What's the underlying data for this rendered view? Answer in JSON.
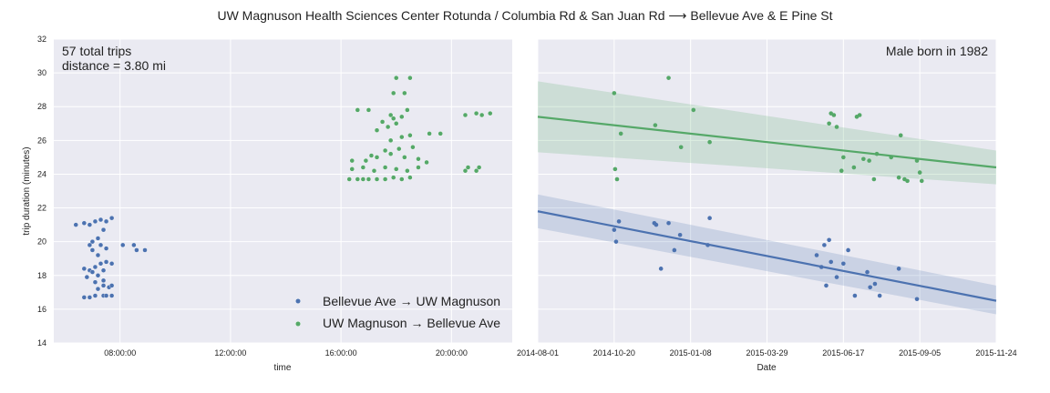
{
  "title": "UW Magnuson Health Sciences Center Rotunda / Columbia Rd & San Juan Rd ⟶ Bellevue Ave & E Pine St",
  "colors": {
    "bellevue_to_uw": "#4c72b0",
    "uw_to_bellevue": "#55a868",
    "panel_bg": "#eaeaf2",
    "grid": "#ffffff"
  },
  "chart_data": [
    {
      "type": "scatter",
      "xlabel": "time",
      "ylabel": "trip duration (minutes)",
      "ylim": [
        14,
        32
      ],
      "yticks": [
        "14",
        "16",
        "18",
        "20",
        "22",
        "24",
        "26",
        "28",
        "30",
        "32"
      ],
      "xlim_hours": [
        5.6,
        22.2
      ],
      "xticks": [
        {
          "h": 8,
          "label": "08:00:00"
        },
        {
          "h": 12,
          "label": "12:00:00"
        },
        {
          "h": 16,
          "label": "16:00:00"
        },
        {
          "h": 20,
          "label": "20:00:00"
        }
      ],
      "annotation_line1": "57 total trips",
      "annotation_line2": "distance = 3.80 mi",
      "legend": [
        {
          "name": "Bellevue Ave → UW Magnuson",
          "color": "#4c72b0"
        },
        {
          "name": "UW Magnuson → Bellevue Ave",
          "color": "#55a868"
        }
      ],
      "series": [
        {
          "name": "Bellevue Ave → UW Magnuson",
          "color": "#4c72b0",
          "points": [
            [
              6.4,
              21.0
            ],
            [
              6.7,
              21.1
            ],
            [
              6.9,
              21.0
            ],
            [
              7.1,
              21.2
            ],
            [
              7.3,
              21.3
            ],
            [
              7.5,
              21.2
            ],
            [
              7.7,
              21.4
            ],
            [
              7.4,
              20.7
            ],
            [
              7.2,
              20.2
            ],
            [
              7.0,
              20.0
            ],
            [
              7.3,
              19.8
            ],
            [
              6.9,
              19.8
            ],
            [
              7.0,
              19.5
            ],
            [
              7.2,
              19.2
            ],
            [
              7.5,
              19.6
            ],
            [
              7.4,
              20.7
            ],
            [
              8.1,
              19.8
            ],
            [
              8.5,
              19.8
            ],
            [
              8.6,
              19.5
            ],
            [
              8.9,
              19.5
            ],
            [
              6.7,
              18.4
            ],
            [
              6.9,
              18.3
            ],
            [
              7.1,
              18.5
            ],
            [
              7.3,
              18.7
            ],
            [
              7.5,
              18.8
            ],
            [
              7.7,
              18.7
            ],
            [
              7.0,
              18.2
            ],
            [
              7.2,
              18.0
            ],
            [
              7.4,
              18.3
            ],
            [
              6.8,
              17.9
            ],
            [
              7.1,
              17.6
            ],
            [
              7.4,
              17.7
            ],
            [
              7.2,
              17.2
            ],
            [
              7.4,
              17.4
            ],
            [
              7.6,
              17.3
            ],
            [
              7.7,
              17.4
            ],
            [
              6.7,
              16.7
            ],
            [
              6.9,
              16.7
            ],
            [
              7.1,
              16.8
            ],
            [
              7.4,
              16.8
            ],
            [
              7.5,
              16.8
            ],
            [
              7.7,
              16.8
            ]
          ]
        },
        {
          "name": "UW Magnuson → Bellevue Ave",
          "color": "#55a868",
          "points": [
            [
              16.3,
              23.7
            ],
            [
              16.6,
              23.7
            ],
            [
              16.8,
              23.7
            ],
            [
              17.0,
              23.7
            ],
            [
              17.3,
              23.7
            ],
            [
              17.6,
              23.7
            ],
            [
              17.9,
              23.8
            ],
            [
              18.2,
              23.7
            ],
            [
              18.5,
              23.8
            ],
            [
              16.4,
              24.3
            ],
            [
              16.8,
              24.4
            ],
            [
              17.2,
              24.2
            ],
            [
              17.6,
              24.4
            ],
            [
              18.0,
              24.3
            ],
            [
              18.4,
              24.2
            ],
            [
              18.8,
              24.4
            ],
            [
              16.4,
              24.8
            ],
            [
              16.9,
              24.8
            ],
            [
              17.3,
              25.0
            ],
            [
              17.8,
              25.2
            ],
            [
              18.3,
              25.0
            ],
            [
              18.8,
              24.9
            ],
            [
              19.1,
              24.7
            ],
            [
              17.1,
              25.1
            ],
            [
              17.6,
              25.4
            ],
            [
              18.1,
              25.5
            ],
            [
              18.6,
              25.6
            ],
            [
              17.8,
              26.0
            ],
            [
              18.2,
              26.2
            ],
            [
              18.5,
              26.3
            ],
            [
              19.2,
              26.4
            ],
            [
              19.6,
              26.4
            ],
            [
              17.3,
              26.6
            ],
            [
              17.7,
              26.8
            ],
            [
              18.0,
              27.0
            ],
            [
              17.5,
              27.1
            ],
            [
              17.9,
              27.3
            ],
            [
              18.2,
              27.4
            ],
            [
              17.8,
              27.5
            ],
            [
              16.6,
              27.8
            ],
            [
              17.0,
              27.8
            ],
            [
              18.4,
              27.8
            ],
            [
              17.9,
              28.8
            ],
            [
              18.3,
              28.8
            ],
            [
              18.0,
              29.7
            ],
            [
              18.5,
              29.7
            ],
            [
              20.5,
              24.2
            ],
            [
              20.6,
              24.4
            ],
            [
              20.9,
              24.2
            ],
            [
              21.0,
              24.4
            ],
            [
              20.5,
              27.5
            ],
            [
              20.9,
              27.6
            ],
            [
              21.1,
              27.5
            ],
            [
              21.4,
              27.6
            ]
          ]
        }
      ]
    },
    {
      "type": "scatter",
      "xlabel": "Date",
      "ylabel": "",
      "ylim": [
        14,
        32
      ],
      "xlim_days": [
        0,
        480
      ],
      "xticks": [
        {
          "d": 0,
          "label": "2014-08-01"
        },
        {
          "d": 80,
          "label": "2014-10-20"
        },
        {
          "d": 160,
          "label": "2015-01-08"
        },
        {
          "d": 240,
          "label": "2015-03-29"
        },
        {
          "d": 320,
          "label": "2015-06-17"
        },
        {
          "d": 400,
          "label": "2015-09-05"
        },
        {
          "d": 480,
          "label": "2015-11-24"
        }
      ],
      "annotation": "Male born in 1982",
      "series": [
        {
          "name": "Bellevue Ave → UW Magnuson",
          "color": "#4c72b0",
          "fit": [
            [
              0,
              21.8
            ],
            [
              480,
              16.5
            ]
          ],
          "band_start": [
            20.8,
            22.8
          ],
          "band_end": [
            15.7,
            17.4
          ],
          "points": [
            [
              80,
              20.7
            ],
            [
              82,
              20.0
            ],
            [
              85,
              21.2
            ],
            [
              122,
              21.1
            ],
            [
              124,
              21.0
            ],
            [
              129,
              18.4
            ],
            [
              137,
              21.1
            ],
            [
              143,
              19.5
            ],
            [
              149,
              20.4
            ],
            [
              178,
              19.8
            ],
            [
              180,
              21.4
            ],
            [
              292,
              19.2
            ],
            [
              297,
              18.5
            ],
            [
              300,
              19.8
            ],
            [
              302,
              17.4
            ],
            [
              305,
              20.1
            ],
            [
              307,
              18.8
            ],
            [
              313,
              17.9
            ],
            [
              320,
              18.7
            ],
            [
              325,
              19.5
            ],
            [
              332,
              16.8
            ],
            [
              345,
              18.2
            ],
            [
              348,
              17.3
            ],
            [
              353,
              17.5
            ],
            [
              358,
              16.8
            ],
            [
              378,
              18.4
            ],
            [
              397,
              16.6
            ]
          ]
        },
        {
          "name": "UW Magnuson → Bellevue Ave",
          "color": "#55a868",
          "fit": [
            [
              0,
              27.4
            ],
            [
              480,
              24.4
            ]
          ],
          "band_start": [
            25.3,
            29.5
          ],
          "band_end": [
            23.4,
            25.4
          ],
          "points": [
            [
              80,
              28.8
            ],
            [
              81,
              24.3
            ],
            [
              83,
              23.7
            ],
            [
              87,
              26.4
            ],
            [
              123,
              26.9
            ],
            [
              137,
              29.7
            ],
            [
              150,
              25.6
            ],
            [
              163,
              27.8
            ],
            [
              180,
              25.9
            ],
            [
              305,
              27.0
            ],
            [
              307,
              27.6
            ],
            [
              310,
              27.5
            ],
            [
              313,
              26.8
            ],
            [
              318,
              24.2
            ],
            [
              320,
              25.0
            ],
            [
              331,
              24.4
            ],
            [
              334,
              27.4
            ],
            [
              337,
              27.5
            ],
            [
              341,
              24.9
            ],
            [
              347,
              24.8
            ],
            [
              352,
              23.7
            ],
            [
              355,
              25.2
            ],
            [
              370,
              25.0
            ],
            [
              378,
              23.8
            ],
            [
              380,
              26.3
            ],
            [
              384,
              23.7
            ],
            [
              387,
              23.6
            ],
            [
              397,
              24.8
            ],
            [
              400,
              24.1
            ],
            [
              402,
              23.6
            ]
          ]
        }
      ]
    }
  ]
}
